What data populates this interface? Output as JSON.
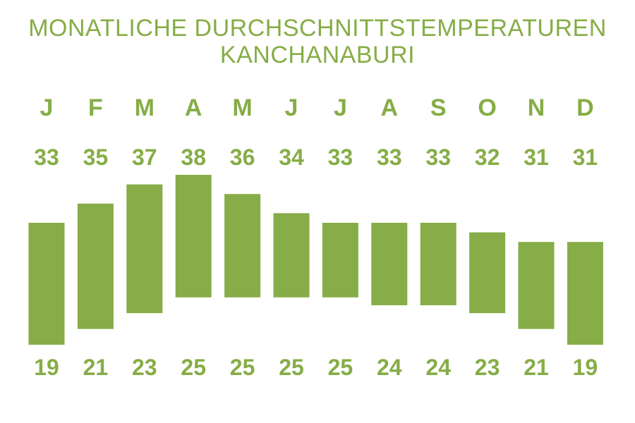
{
  "title_line1": "MONATLICHE DURCHSCHNITTSTEMPERATUREN",
  "title_line2": "KANCHANABURI",
  "colors": {
    "accent": "#86ad47",
    "background": "#ffffff"
  },
  "chart_data": {
    "type": "bar",
    "subtype": "floating-range",
    "categories": [
      "J",
      "F",
      "M",
      "A",
      "M",
      "J",
      "J",
      "A",
      "S",
      "O",
      "N",
      "D"
    ],
    "series": [
      {
        "name": "",
        "values": [
          33,
          35,
          37,
          38,
          36,
          34,
          33,
          33,
          33,
          32,
          31,
          31
        ]
      },
      {
        "name": "",
        "values": [
          19,
          21,
          23,
          25,
          25,
          25,
          25,
          24,
          24,
          23,
          21,
          19
        ]
      }
    ],
    "title": "MONATLICHE DURCHSCHNITTSTEMPERATUREN KANCHANABURI",
    "xlabel": "",
    "ylabel": "",
    "grid": false,
    "legend": "none"
  }
}
